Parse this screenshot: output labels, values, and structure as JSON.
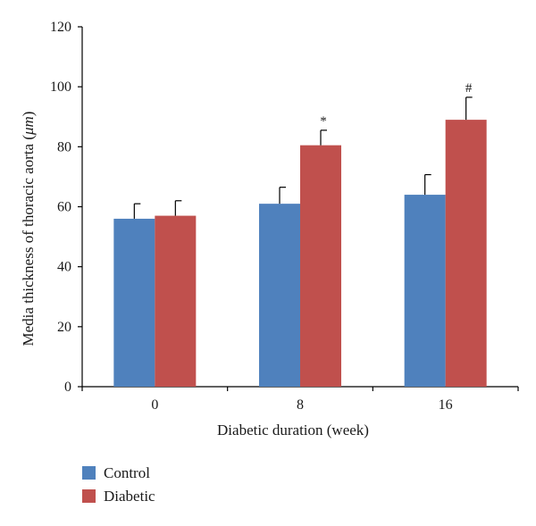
{
  "chart_data": {
    "type": "bar",
    "title": "",
    "xlabel": "Diabetic duration (week)",
    "ylabel_parts": [
      "Media thickness of thoracic aorta (",
      "μm",
      ")"
    ],
    "categories": [
      "0",
      "8",
      "16"
    ],
    "ylim": [
      0,
      120
    ],
    "yticks": [
      0,
      20,
      40,
      60,
      80,
      100,
      120
    ],
    "grid": false,
    "legend_position": "bottom-left",
    "series": [
      {
        "name": "Control",
        "color": "#4f81bd",
        "values": [
          56,
          61,
          64
        ],
        "errors": [
          5,
          5.5,
          6.7
        ],
        "annotations": [
          "",
          "",
          ""
        ]
      },
      {
        "name": "Diabetic",
        "color": "#c0504d",
        "values": [
          57,
          80.5,
          89
        ],
        "errors": [
          5,
          5,
          7.5
        ],
        "annotations": [
          "",
          "*",
          "#"
        ]
      }
    ]
  }
}
